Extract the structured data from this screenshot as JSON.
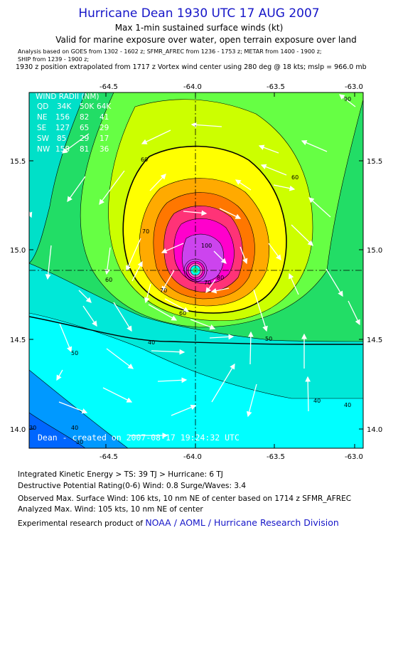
{
  "header": {
    "title": "Hurricane Dean 1930 UTC 17 AUG 2007",
    "subtitle": "Max 1-min sustained surface winds (kt)",
    "validity": "Valid for marine exposure over water, open terrain exposure over land",
    "analysis_line1": "Analysis based on  GOES from 1302 - 1602 z;  SFMR_AFREC from 1236 - 1753 z;  METAR from 1400 - 1900 z;",
    "analysis_line2": "SHIP from 1239 - 1900 z;",
    "position_note": "1930 z position extrapolated from 1717 z Vortex wind center using 280 deg @ 18 kts; mslp = 966.0 mb"
  },
  "map": {
    "lon_ticks": [
      "-64.5",
      "-64.0",
      "-63.5",
      "-63.0"
    ],
    "lat_ticks": [
      "15.5",
      "15.0",
      "14.5",
      "14.0"
    ],
    "lon_range": [
      -64.93,
      -63.05
    ],
    "lat_range": [
      13.9,
      15.9
    ],
    "center": {
      "lon": -64.0,
      "lat": 14.89
    },
    "wind_radii": {
      "title": "WIND RADII (NM)",
      "header": [
        "QD",
        "34K",
        "50K",
        "64K"
      ],
      "rows": [
        [
          "NE",
          "156",
          "82",
          "41"
        ],
        [
          "SE",
          "127",
          "65",
          "29"
        ],
        [
          "SW",
          "85",
          "29",
          "17"
        ],
        [
          "NW",
          "158",
          "81",
          "36"
        ]
      ]
    },
    "contour_labels": [
      "90",
      "60",
      "60",
      "70",
      "60",
      "100",
      "70",
      "60",
      "50",
      "50",
      "40",
      "40",
      "40",
      "40",
      "30",
      "30",
      "80",
      "70"
    ],
    "credit": "Dean - created on 2007-08-17 19:24:32 UTC",
    "colors": {
      "blue": "#0066ff",
      "cyan_blue": "#0099ff",
      "cyan": "#00ffff",
      "teal": "#00e0c8",
      "green": "#22dd66",
      "light_green": "#66ff44",
      "yellow_green": "#ccff00",
      "yellow": "#ffff00",
      "orange": "#ffaa00",
      "dark_orange": "#ff7700",
      "red_pink": "#ff3377",
      "magenta": "#ff00cc",
      "purple": "#cc44ee"
    }
  },
  "footer": {
    "ike": "Integrated Kinetic Energy > TS: 39 TJ   > Hurricane: 6 TJ",
    "dpr": "Destructive Potential Rating(0-6)   Wind: 0.8 Surge/Waves: 3.4",
    "observed": "Observed Max. Surface Wind: 106 kts, 10 nm NE of center based on 1714 z SFMR_AFREC",
    "analyzed": "Analyzed Max. Wind: 105 kts, 10 nm NE of center",
    "credit_prefix": "Experimental research product of",
    "credit_link": "NOAA / AOML / Hurricane Research Division"
  }
}
